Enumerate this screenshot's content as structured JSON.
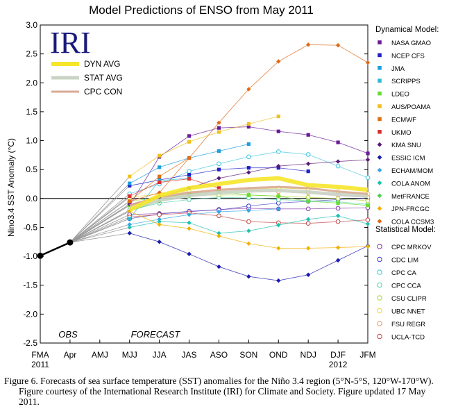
{
  "page_title": "Model Predictions of ENSO from May 2011",
  "logo_text": "IRI",
  "caption": "Figure 6. Forecasts of sea surface temperature (SST) anomalies for the Niño 3.4 region (5°N-5°S, 120°W-170°W).  Figure courtesy of the International Research Institute (IRI) for Climate and Society.  Figure updated 17 May 2011.",
  "chart_data": {
    "type": "line",
    "title": "Model Predictions of ENSO from May 2011",
    "ylabel": "Nino3.4 SST Anomaly (°C)",
    "xlabel": "",
    "categories": [
      "FMA",
      "Apr",
      "AMJ",
      "MJJ",
      "JJA",
      "JAS",
      "ASO",
      "SON",
      "OND",
      "NDJ",
      "DJF",
      "JFM"
    ],
    "year_labels": [
      {
        "category": "FMA",
        "text": "2011"
      },
      {
        "category": "DJF",
        "text": "2012"
      }
    ],
    "ylim": [
      -2.5,
      3.0
    ],
    "yticks": [
      "3.0",
      "2.5",
      "2.0",
      "1.5",
      "1.0",
      "0.5",
      "0.0",
      "-0.5",
      "-1.0",
      "-1.5",
      "-2.0",
      "-2.5"
    ],
    "annotations": {
      "obs": "OBS",
      "forecast": "FORECAST"
    },
    "observed": {
      "categories": [
        "FMA",
        "Apr"
      ],
      "values": [
        -0.99,
        -0.76
      ],
      "color": "#000000"
    },
    "avg_legend": [
      {
        "name": "DYN AVG",
        "color": "#f5e62a"
      },
      {
        "name": "STAT AVG",
        "color": "#c9d3c5"
      },
      {
        "name": "CPC CON",
        "color": "#d9a995"
      }
    ],
    "averages": [
      {
        "name": "STAT AVG",
        "color": "#c9d3c5",
        "width": 5,
        "values": [
          null,
          null,
          null,
          -0.17,
          -0.03,
          0.05,
          0.1,
          0.13,
          0.14,
          0.11,
          0.07,
          0.04
        ]
      },
      {
        "name": "CPC CON",
        "color": "#d9a995",
        "width": 3,
        "values": [
          null,
          null,
          null,
          -0.12,
          0.03,
          0.1,
          0.15,
          0.18,
          0.2,
          0.18,
          0.12,
          0.08
        ]
      },
      {
        "name": "DYN AVG",
        "color": "#f5e62a",
        "width": 6,
        "values": [
          null,
          null,
          null,
          -0.2,
          0.05,
          0.18,
          0.25,
          0.32,
          0.35,
          0.23,
          0.2,
          0.15
        ]
      }
    ],
    "dynamical_title": "Dynamical Model:",
    "statistical_title": "Statistical Model:",
    "series_dynamical": [
      {
        "name": "NASA GMAO",
        "color": "#6a1b9a",
        "values": [
          null,
          null,
          null,
          -0.12,
          0.72,
          1.08,
          1.22,
          1.24,
          1.16,
          1.1,
          0.97,
          0.78
        ]
      },
      {
        "name": "NCEP CFS",
        "color": "#2020c8",
        "values": [
          null,
          null,
          null,
          0.22,
          0.32,
          0.41,
          0.5,
          0.53,
          0.53,
          0.47,
          null,
          null
        ]
      },
      {
        "name": "JMA",
        "color": "#1e9ee0",
        "values": [
          null,
          null,
          null,
          0.26,
          0.54,
          0.7,
          0.82,
          0.94,
          null,
          null,
          null,
          null
        ]
      },
      {
        "name": "SCRIPPS",
        "color": "#2fb8d8",
        "values": [
          null,
          null,
          null,
          -0.35,
          0.31,
          0.35,
          null,
          null,
          null,
          null,
          null,
          null
        ]
      },
      {
        "name": "LDEO",
        "color": "#66dd33",
        "values": [
          null,
          null,
          null,
          -0.12,
          0.02,
          0.08,
          0.12,
          0.06,
          0.04,
          -0.05,
          -0.08,
          -0.12
        ]
      },
      {
        "name": "AUS/POAMA",
        "color": "#f0c020",
        "values": [
          null,
          null,
          null,
          0.38,
          0.74,
          0.98,
          1.15,
          1.29,
          1.42,
          null,
          null,
          null
        ]
      },
      {
        "name": "ECMWF",
        "color": "#e07010",
        "values": [
          null,
          null,
          null,
          -0.05,
          0.38,
          0.7,
          null,
          null,
          null,
          null,
          null,
          null
        ]
      },
      {
        "name": "UKMO",
        "color": "#d83030",
        "values": [
          null,
          null,
          null,
          0.04,
          0.28,
          0.34,
          0.18,
          null,
          null,
          null,
          null,
          null
        ]
      },
      {
        "name": "KMA SNU",
        "color": "#5a1a7a",
        "values": [
          null,
          null,
          null,
          -0.1,
          0.02,
          0.18,
          0.35,
          0.45,
          0.56,
          0.6,
          0.64,
          0.67
        ]
      },
      {
        "name": "ESSIC ICM",
        "color": "#1a1ab0",
        "values": [
          null,
          null,
          null,
          -0.6,
          -0.75,
          -0.96,
          -1.18,
          -1.35,
          -1.42,
          -1.32,
          -1.07,
          -0.82
        ]
      },
      {
        "name": "ECHAM/MOM",
        "color": "#36a8e0",
        "values": [
          null,
          null,
          null,
          -0.45,
          -0.36,
          -0.28,
          -0.23,
          -0.21,
          -0.18,
          null,
          null,
          null
        ]
      },
      {
        "name": "COLA ANOM",
        "color": "#20c0b0",
        "values": [
          null,
          null,
          null,
          -0.5,
          -0.4,
          -0.42,
          -0.6,
          -0.56,
          -0.46,
          -0.36,
          -0.3,
          -0.44
        ]
      },
      {
        "name": "MetFRANCE",
        "color": "#50d050",
        "values": [
          null,
          null,
          null,
          -0.22,
          -0.05,
          0.05,
          null,
          null,
          null,
          null,
          null,
          null
        ]
      },
      {
        "name": "JPN-FRCGC",
        "color": "#f0b000",
        "values": [
          null,
          null,
          null,
          -0.22,
          -0.45,
          -0.52,
          -0.65,
          -0.78,
          -0.86,
          -0.86,
          -0.85,
          -0.83
        ]
      },
      {
        "name": "COLA CCSM3",
        "color": "#e06a18",
        "values": [
          null,
          null,
          null,
          -0.05,
          0.1,
          0.7,
          1.31,
          1.89,
          2.37,
          2.66,
          2.65,
          2.35
        ]
      }
    ],
    "series_statistical": [
      {
        "name": "CPC MRKOV",
        "color": "#8a3cb0",
        "values": [
          null,
          null,
          null,
          -0.28,
          -0.26,
          -0.23,
          -0.19,
          -0.17,
          -0.18,
          -0.18,
          -0.17,
          -0.16
        ]
      },
      {
        "name": "CDC LIM",
        "color": "#4848c8",
        "values": [
          null,
          null,
          null,
          -0.35,
          -0.27,
          -0.22,
          -0.2,
          -0.13,
          -0.08,
          -0.05,
          -0.02,
          0.0
        ]
      },
      {
        "name": "CPC CA",
        "color": "#48c8e0",
        "values": [
          null,
          null,
          null,
          0.08,
          0.25,
          0.47,
          0.6,
          0.72,
          0.81,
          0.76,
          0.56,
          0.36
        ]
      },
      {
        "name": "CPC CCA",
        "color": "#58d0b0",
        "values": [
          null,
          null,
          null,
          -0.2,
          -0.08,
          -0.02,
          0.02,
          0.01,
          -0.02,
          -0.04,
          -0.06,
          -0.1
        ]
      },
      {
        "name": "CSU CLIPR",
        "color": "#b0d840",
        "values": [
          null,
          null,
          null,
          -0.05,
          0.02,
          0.05,
          0.06,
          0.06,
          0.04,
          0.02,
          0.0,
          -0.04
        ]
      },
      {
        "name": "UBC NNET",
        "color": "#e8d840",
        "values": [
          null,
          null,
          null,
          0.02,
          0.08,
          0.12,
          0.14,
          0.16,
          0.18,
          0.16,
          0.12,
          0.08
        ]
      },
      {
        "name": "FSU REGR",
        "color": "#e8a070",
        "values": [
          null,
          null,
          null,
          -0.1,
          0.0,
          0.08,
          0.12,
          0.14,
          0.12,
          0.1,
          0.06,
          0.02
        ]
      },
      {
        "name": "UCLA-TCD",
        "color": "#c85050",
        "values": [
          null,
          null,
          null,
          -0.32,
          -0.28,
          -0.25,
          -0.3,
          -0.4,
          -0.42,
          -0.43,
          -0.4,
          -0.37
        ]
      }
    ]
  }
}
